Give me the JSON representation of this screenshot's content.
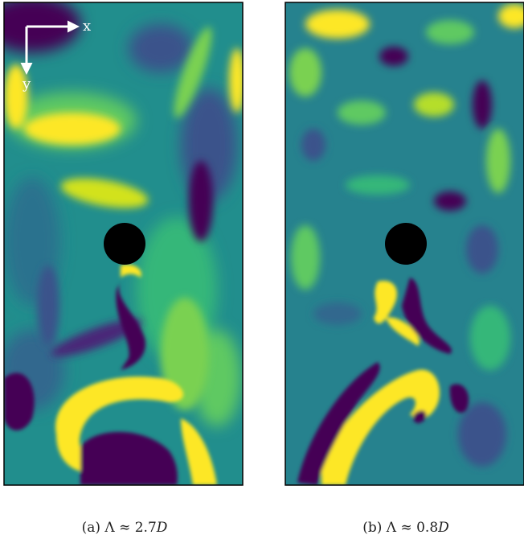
{
  "figure": {
    "axes_labels": {
      "x": "x",
      "y": "y"
    },
    "panels": [
      {
        "caption": {
          "prefix": "(a) Λ ≈ 2.7",
          "symbol": "D"
        }
      },
      {
        "caption": {
          "prefix": "(b) Λ ≈ 0.8",
          "symbol": "D"
        }
      }
    ]
  }
}
